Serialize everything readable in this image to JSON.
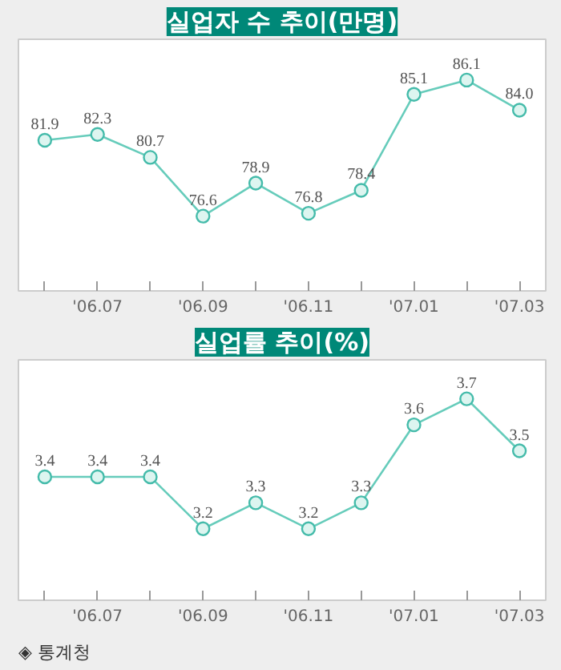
{
  "chart_data": [
    {
      "type": "line",
      "title": "실업자 수 추이(만명)",
      "categories": [
        null,
        "'06.07",
        null,
        "'06.09",
        null,
        "'06.11",
        null,
        "'07.01",
        null,
        "'07.03"
      ],
      "values": [
        81.9,
        82.3,
        80.7,
        76.6,
        78.9,
        76.8,
        78.4,
        85.1,
        86.1,
        84.0
      ],
      "color": "#66ccbb",
      "marker": "circle",
      "value_labels": [
        "81.9",
        "82.3",
        "80.7",
        "76.6",
        "78.9",
        "76.8",
        "78.4",
        "85.1",
        "86.1",
        "84.0"
      ]
    },
    {
      "type": "line",
      "title": "실업률 추이(%)",
      "categories": [
        null,
        "'06.07",
        null,
        "'06.09",
        null,
        "'06.11",
        null,
        "'07.01",
        null,
        "'07.03"
      ],
      "values": [
        3.4,
        3.4,
        3.4,
        3.2,
        3.3,
        3.2,
        3.3,
        3.6,
        3.7,
        3.5
      ],
      "color": "#66ccbb",
      "marker": "circle",
      "data_labels": true,
      "annotations": [
        "◈ 통계청"
      ]
    }
  ]
}
